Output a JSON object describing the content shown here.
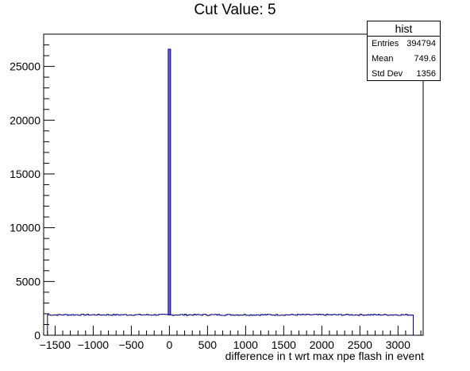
{
  "chart_data": {
    "type": "histogram",
    "title": "Cut Value: 5",
    "xlabel": "difference in t wrt max npe flash in event",
    "ylabel": "",
    "xlim": [
      -1650,
      3330
    ],
    "ylim": [
      0,
      28000
    ],
    "x_ticks": [
      -1500,
      -1000,
      -500,
      0,
      500,
      1000,
      1500,
      2000,
      2500,
      3000
    ],
    "x_tick_labels": [
      "−1500",
      "−1000",
      "−500",
      "0",
      "500",
      "1000",
      "1500",
      "2000",
      "2500",
      "3000"
    ],
    "y_ticks": [
      0,
      5000,
      10000,
      15000,
      20000,
      25000
    ],
    "y_tick_labels": [
      "0",
      "5000",
      "10000",
      "15000",
      "20000",
      "25000"
    ],
    "histogram_range": [
      -1600,
      3200
    ],
    "baseline_level": 1900,
    "peak": {
      "x": 0,
      "value": 26600
    },
    "line_color": "#000080",
    "fill_color": "#7b68c8"
  },
  "stats_box": {
    "name": "hist",
    "rows": [
      {
        "label": "Entries",
        "value": "394794"
      },
      {
        "label": "Mean",
        "value": "749.6"
      },
      {
        "label": "Std Dev",
        "value": "1356"
      }
    ]
  }
}
